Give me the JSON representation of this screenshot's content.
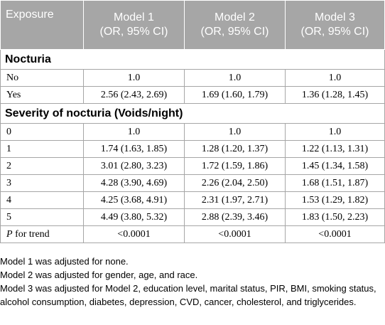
{
  "header": {
    "exposure": "Exposure",
    "models": [
      {
        "name": "Model 1",
        "sub": "(OR, 95% CI)"
      },
      {
        "name": "Model 2",
        "sub": "(OR, 95% CI)"
      },
      {
        "name": "Model 3",
        "sub": "(OR, 95% CI)"
      }
    ]
  },
  "sections": [
    {
      "title": "Nocturia",
      "rows": [
        {
          "label": "No",
          "values": [
            "1.0",
            "1.0",
            "1.0"
          ]
        },
        {
          "label": "Yes",
          "values": [
            "2.56 (2.43, 2.69)",
            "1.69 (1.60, 1.79)",
            "1.36 (1.28, 1.45)"
          ]
        }
      ]
    },
    {
      "title": "Severity of nocturia (Voids/night)",
      "rows": [
        {
          "label": "0",
          "values": [
            "1.0",
            "1.0",
            "1.0"
          ]
        },
        {
          "label": "1",
          "values": [
            "1.74 (1.63, 1.85)",
            "1.28 (1.20, 1.37)",
            "1.22 (1.13, 1.31)"
          ]
        },
        {
          "label": "2",
          "values": [
            "3.01 (2.80, 3.23)",
            "1.72 (1.59, 1.86)",
            "1.45 (1.34, 1.58)"
          ]
        },
        {
          "label": "3",
          "values": [
            "4.28 (3.90, 4.69)",
            "2.26 (2.04, 2.50)",
            "1.68 (1.51, 1.87)"
          ]
        },
        {
          "label": "4",
          "values": [
            "4.25 (3.68, 4.91)",
            "2.31 (1.97, 2.71)",
            "1.53 (1.29, 1.82)"
          ]
        },
        {
          "label": "5",
          "values": [
            "4.49 (3.80, 5.32)",
            "2.88 (2.39, 3.46)",
            "1.83 (1.50, 2.23)"
          ]
        }
      ]
    }
  ],
  "trend": {
    "p": "P",
    "label": " for trend",
    "values": [
      "<0.0001",
      "<0.0001",
      "<0.0001"
    ]
  },
  "notes": [
    "Model 1 was adjusted for none.",
    "Model 2 was adjusted for gender, age, and race.",
    "Model 3 was adjusted for Model 2, education level, marital status, PIR, BMI, smoking status, alcohol consumption, diabetes, depression, CVD, cancer, cholesterol, and triglycerides."
  ],
  "colors": {
    "header_bg": "#a6a6a6",
    "grid": "#a6a6a6"
  }
}
